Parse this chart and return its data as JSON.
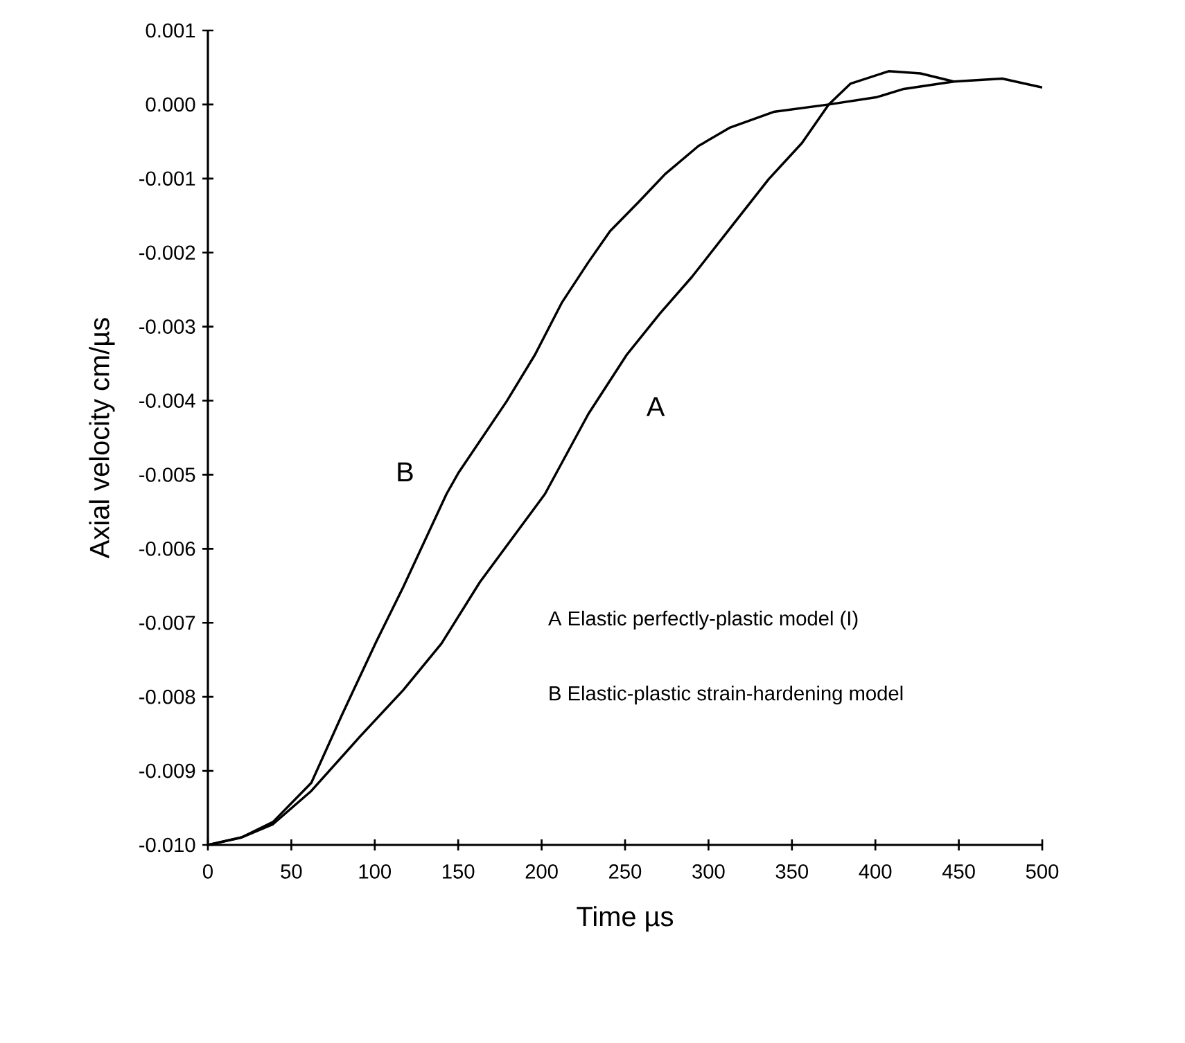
{
  "chart_data": {
    "type": "line",
    "xlabel": "Time  µs",
    "ylabel": "Axial velocity  cm/µs",
    "xlim": [
      0,
      500
    ],
    "ylim": [
      -0.01,
      0.001
    ],
    "xticks": [
      0,
      50,
      100,
      150,
      200,
      250,
      300,
      350,
      400,
      450,
      500
    ],
    "yticks": [
      {
        "value": 0.001,
        "label": "0.001"
      },
      {
        "value": 0,
        "label": "0.000"
      },
      {
        "value": -0.001,
        "label": "-0.001"
      },
      {
        "value": -0.002,
        "label": "-0.002"
      },
      {
        "value": -0.003,
        "label": "-0.003"
      },
      {
        "value": -0.004,
        "label": "-0.004"
      },
      {
        "value": -0.005,
        "label": "-0.005"
      },
      {
        "value": -0.006,
        "label": "-0.006"
      },
      {
        "value": -0.007,
        "label": "-0.007"
      },
      {
        "value": -0.008,
        "label": "-0.008"
      },
      {
        "value": -0.009,
        "label": "-0.009"
      },
      {
        "value": -0.01,
        "label": "-0.010"
      }
    ],
    "grid": false,
    "legend": false,
    "marker": "none",
    "line_style": "solid",
    "series": [
      {
        "name": "A",
        "color": "#000000",
        "x": [
          0,
          20,
          39,
          62,
          91,
          117,
          140,
          163,
          202,
          228,
          251,
          271,
          290,
          313,
          336,
          356,
          372,
          385,
          408,
          427,
          447
        ],
        "values": [
          -0.01,
          -0.0099,
          -0.00972,
          -0.00927,
          -0.00854,
          -0.00791,
          -0.00728,
          -0.00645,
          -0.00526,
          -0.00418,
          -0.00338,
          -0.00282,
          -0.00233,
          -0.00167,
          -0.00101,
          -0.00052,
          0.0,
          0.00028,
          0.00045,
          0.00042,
          0.00031
        ]
      },
      {
        "name": "B",
        "color": "#000000",
        "x": [
          0,
          20,
          39,
          62,
          80,
          101,
          117,
          143,
          150,
          179,
          196,
          212,
          228,
          241,
          258,
          274,
          294,
          313,
          339,
          372,
          401,
          417,
          447,
          476,
          500
        ],
        "values": [
          -0.01,
          -0.0099,
          -0.00969,
          -0.00916,
          -0.00826,
          -0.00725,
          -0.00652,
          -0.00526,
          -0.00498,
          -0.00401,
          -0.00338,
          -0.00268,
          -0.00213,
          -0.00171,
          -0.00132,
          -0.00094,
          -0.00056,
          -0.00031,
          -0.0001,
          0.0,
          0.0001,
          0.00021,
          0.00031,
          0.00035,
          0.00023
        ]
      }
    ],
    "annotations": [
      "A  Elastic perfectly-plastic model (I)",
      "B  Elastic-plastic strain-hardening model"
    ]
  }
}
